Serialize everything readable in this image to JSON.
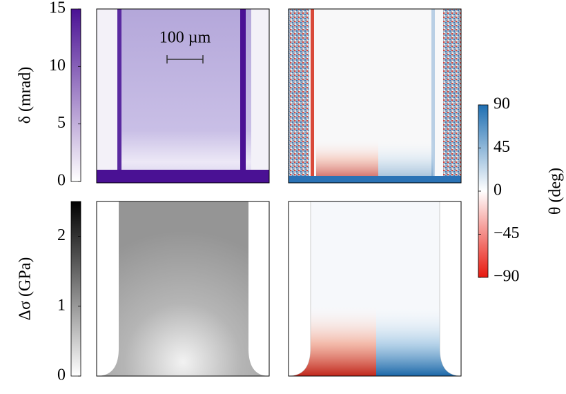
{
  "chart_data": [
    {
      "type": "colorbar",
      "label": "δ (mrad)",
      "ylim": [
        0,
        15
      ],
      "yticks": [
        0,
        5,
        10,
        15
      ],
      "colors": [
        "#ffffff",
        "#4a1194"
      ],
      "label_side": "left"
    },
    {
      "type": "colorbar",
      "label": "Δσ (GPa)",
      "ylim": [
        0,
        2.5
      ],
      "yticks": [
        0,
        1,
        2
      ],
      "colors": [
        "#ffffff",
        "#000000"
      ],
      "label_side": "left"
    },
    {
      "type": "colorbar",
      "label": "θ (deg)",
      "ylim": [
        -90,
        90
      ],
      "yticks": [
        {
          "value": -90,
          "label": "−90"
        },
        {
          "value": -45,
          "label": "−45"
        },
        0,
        45,
        90
      ],
      "colors": [
        "#e8190f",
        "#ffffff",
        "#1f6fb2"
      ],
      "label_side": "right"
    }
  ],
  "scale_bar": "100 µm"
}
